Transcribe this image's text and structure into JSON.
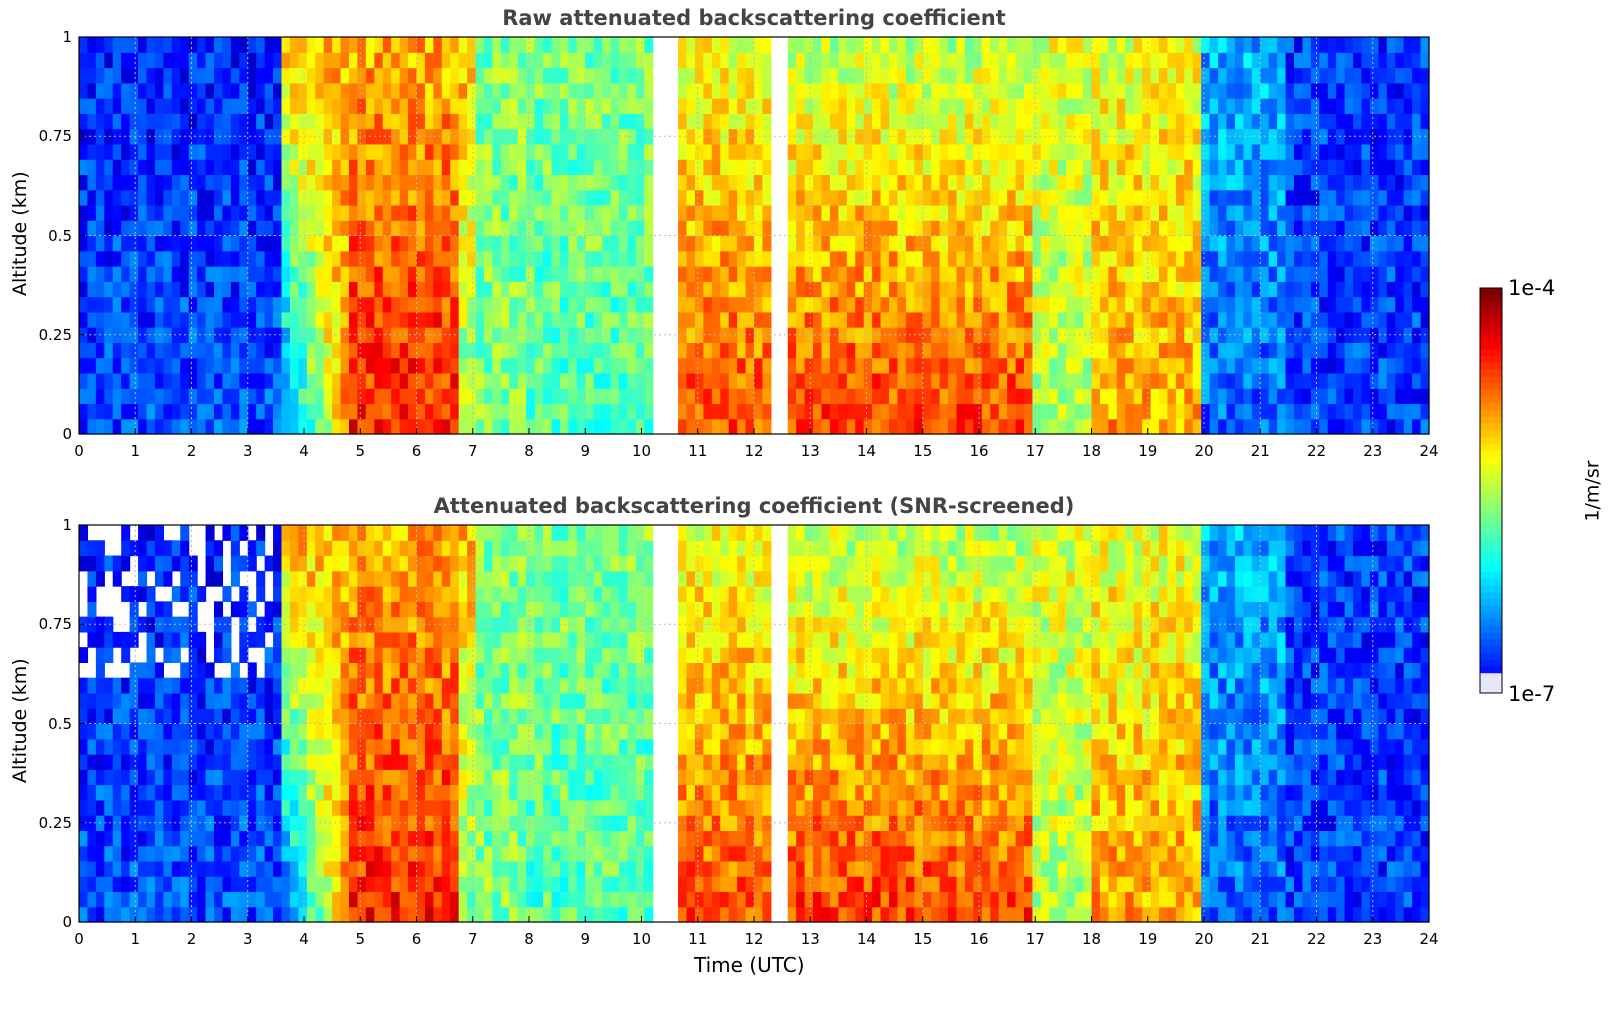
{
  "chart_data": [
    {
      "type": "heatmap",
      "title": "Raw attenuated backscattering coefficient",
      "xlabel": "",
      "ylabel": "Altitude (km)",
      "xlim": [
        0,
        24
      ],
      "ylim": [
        0,
        1
      ],
      "x_ticks": [
        "0",
        "1",
        "2",
        "3",
        "4",
        "5",
        "6",
        "7",
        "8",
        "9",
        "10",
        "11",
        "12",
        "13",
        "14",
        "15",
        "16",
        "17",
        "18",
        "19",
        "20",
        "21",
        "22",
        "23",
        "24"
      ],
      "y_ticks": [
        "0",
        "0.25",
        "0.5",
        "0.75",
        "1"
      ],
      "grid": true,
      "data_gaps_utc": [
        [
          10.25,
          10.6
        ],
        [
          12.3,
          12.65
        ]
      ],
      "colorscale": "jet",
      "clim": [
        "1e-7",
        "1e-4"
      ]
    },
    {
      "type": "heatmap",
      "title": "Attenuated backscattering coefficient (SNR-screened)",
      "xlabel": "Time (UTC)",
      "ylabel": "Altitude (km)",
      "xlim": [
        0,
        24
      ],
      "ylim": [
        0,
        1
      ],
      "x_ticks": [
        "0",
        "1",
        "2",
        "3",
        "4",
        "5",
        "6",
        "7",
        "8",
        "9",
        "10",
        "11",
        "12",
        "13",
        "14",
        "15",
        "16",
        "17",
        "18",
        "19",
        "20",
        "21",
        "22",
        "23",
        "24"
      ],
      "y_ticks": [
        "0",
        "0.25",
        "0.5",
        "0.75",
        "1"
      ],
      "grid": true,
      "data_gaps_utc": [
        [
          10.25,
          10.6
        ],
        [
          12.3,
          12.65
        ]
      ],
      "colorscale": "jet",
      "clim": [
        "1e-7",
        "1e-4"
      ]
    }
  ],
  "colorbar": {
    "max_label": "1e-4",
    "min_label": "1e-7",
    "unit": "1/m/sr"
  }
}
